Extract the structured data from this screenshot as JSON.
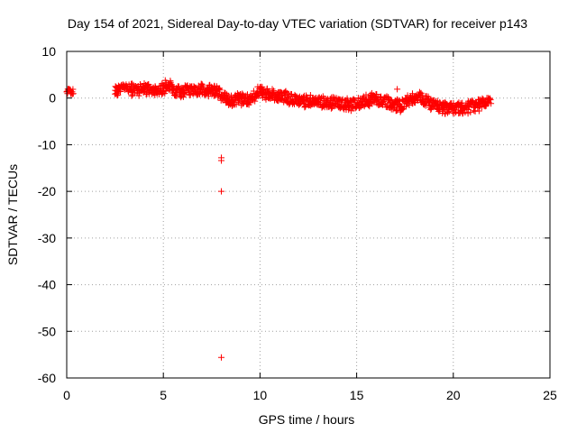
{
  "chart_data": {
    "type": "scatter",
    "title": "Day 154 of 2021, Sidereal Day-to-day VTEC variation (SDTVAR) for receiver p143",
    "xlabel": "GPS time / hours",
    "ylabel": "SDTVAR / TECUs",
    "xlim": [
      0,
      25
    ],
    "ylim": [
      -60,
      10
    ],
    "xticks": [
      0,
      5,
      10,
      15,
      20,
      25
    ],
    "yticks": [
      10,
      0,
      -10,
      -20,
      -30,
      -40,
      -50,
      -60
    ],
    "grid": true,
    "marker": "+",
    "color": "#ff0000",
    "trend": [
      [
        0.0,
        1.5
      ],
      [
        0.3,
        1.5
      ],
      [
        2.5,
        1.6
      ],
      [
        3.0,
        2.0
      ],
      [
        3.5,
        1.8
      ],
      [
        4.0,
        2.0
      ],
      [
        4.5,
        1.7
      ],
      [
        5.0,
        1.8
      ],
      [
        5.3,
        2.6
      ],
      [
        5.6,
        1.3
      ],
      [
        6.0,
        1.6
      ],
      [
        6.5,
        1.8
      ],
      [
        7.0,
        1.9
      ],
      [
        7.5,
        1.7
      ],
      [
        7.8,
        1.2
      ],
      [
        8.2,
        -0.3
      ],
      [
        8.6,
        -0.5
      ],
      [
        9.0,
        -0.2
      ],
      [
        9.5,
        -0.4
      ],
      [
        9.9,
        1.5
      ],
      [
        10.3,
        1.0
      ],
      [
        10.8,
        0.6
      ],
      [
        11.2,
        0.2
      ],
      [
        11.8,
        -0.3
      ],
      [
        12.3,
        -0.8
      ],
      [
        12.8,
        -0.7
      ],
      [
        13.2,
        -1.0
      ],
      [
        13.8,
        -0.8
      ],
      [
        14.3,
        -1.3
      ],
      [
        14.8,
        -1.5
      ],
      [
        15.3,
        -0.8
      ],
      [
        15.8,
        -0.3
      ],
      [
        16.3,
        -0.5
      ],
      [
        16.8,
        -1.4
      ],
      [
        17.3,
        -1.6
      ],
      [
        17.8,
        -0.4
      ],
      [
        18.2,
        0.2
      ],
      [
        18.6,
        -0.6
      ],
      [
        19.0,
        -1.6
      ],
      [
        19.5,
        -2.0
      ],
      [
        20.0,
        -2.2
      ],
      [
        20.5,
        -2.3
      ],
      [
        21.0,
        -1.7
      ],
      [
        21.5,
        -1.2
      ],
      [
        21.9,
        -1.0
      ]
    ],
    "outliers": [
      {
        "x": 0.1,
        "y": 1.8
      },
      {
        "x": 0.2,
        "y": 1.6
      },
      {
        "x": 5.1,
        "y": 3.8
      },
      {
        "x": 10.0,
        "y": 2.3
      },
      {
        "x": 17.1,
        "y": 1.9
      },
      {
        "x": 16.0,
        "y": 0.8
      },
      {
        "x": 8.0,
        "y": -12.8
      },
      {
        "x": 8.0,
        "y": -13.4
      },
      {
        "x": 8.0,
        "y": -20.0
      },
      {
        "x": 8.0,
        "y": -55.6
      }
    ]
  }
}
